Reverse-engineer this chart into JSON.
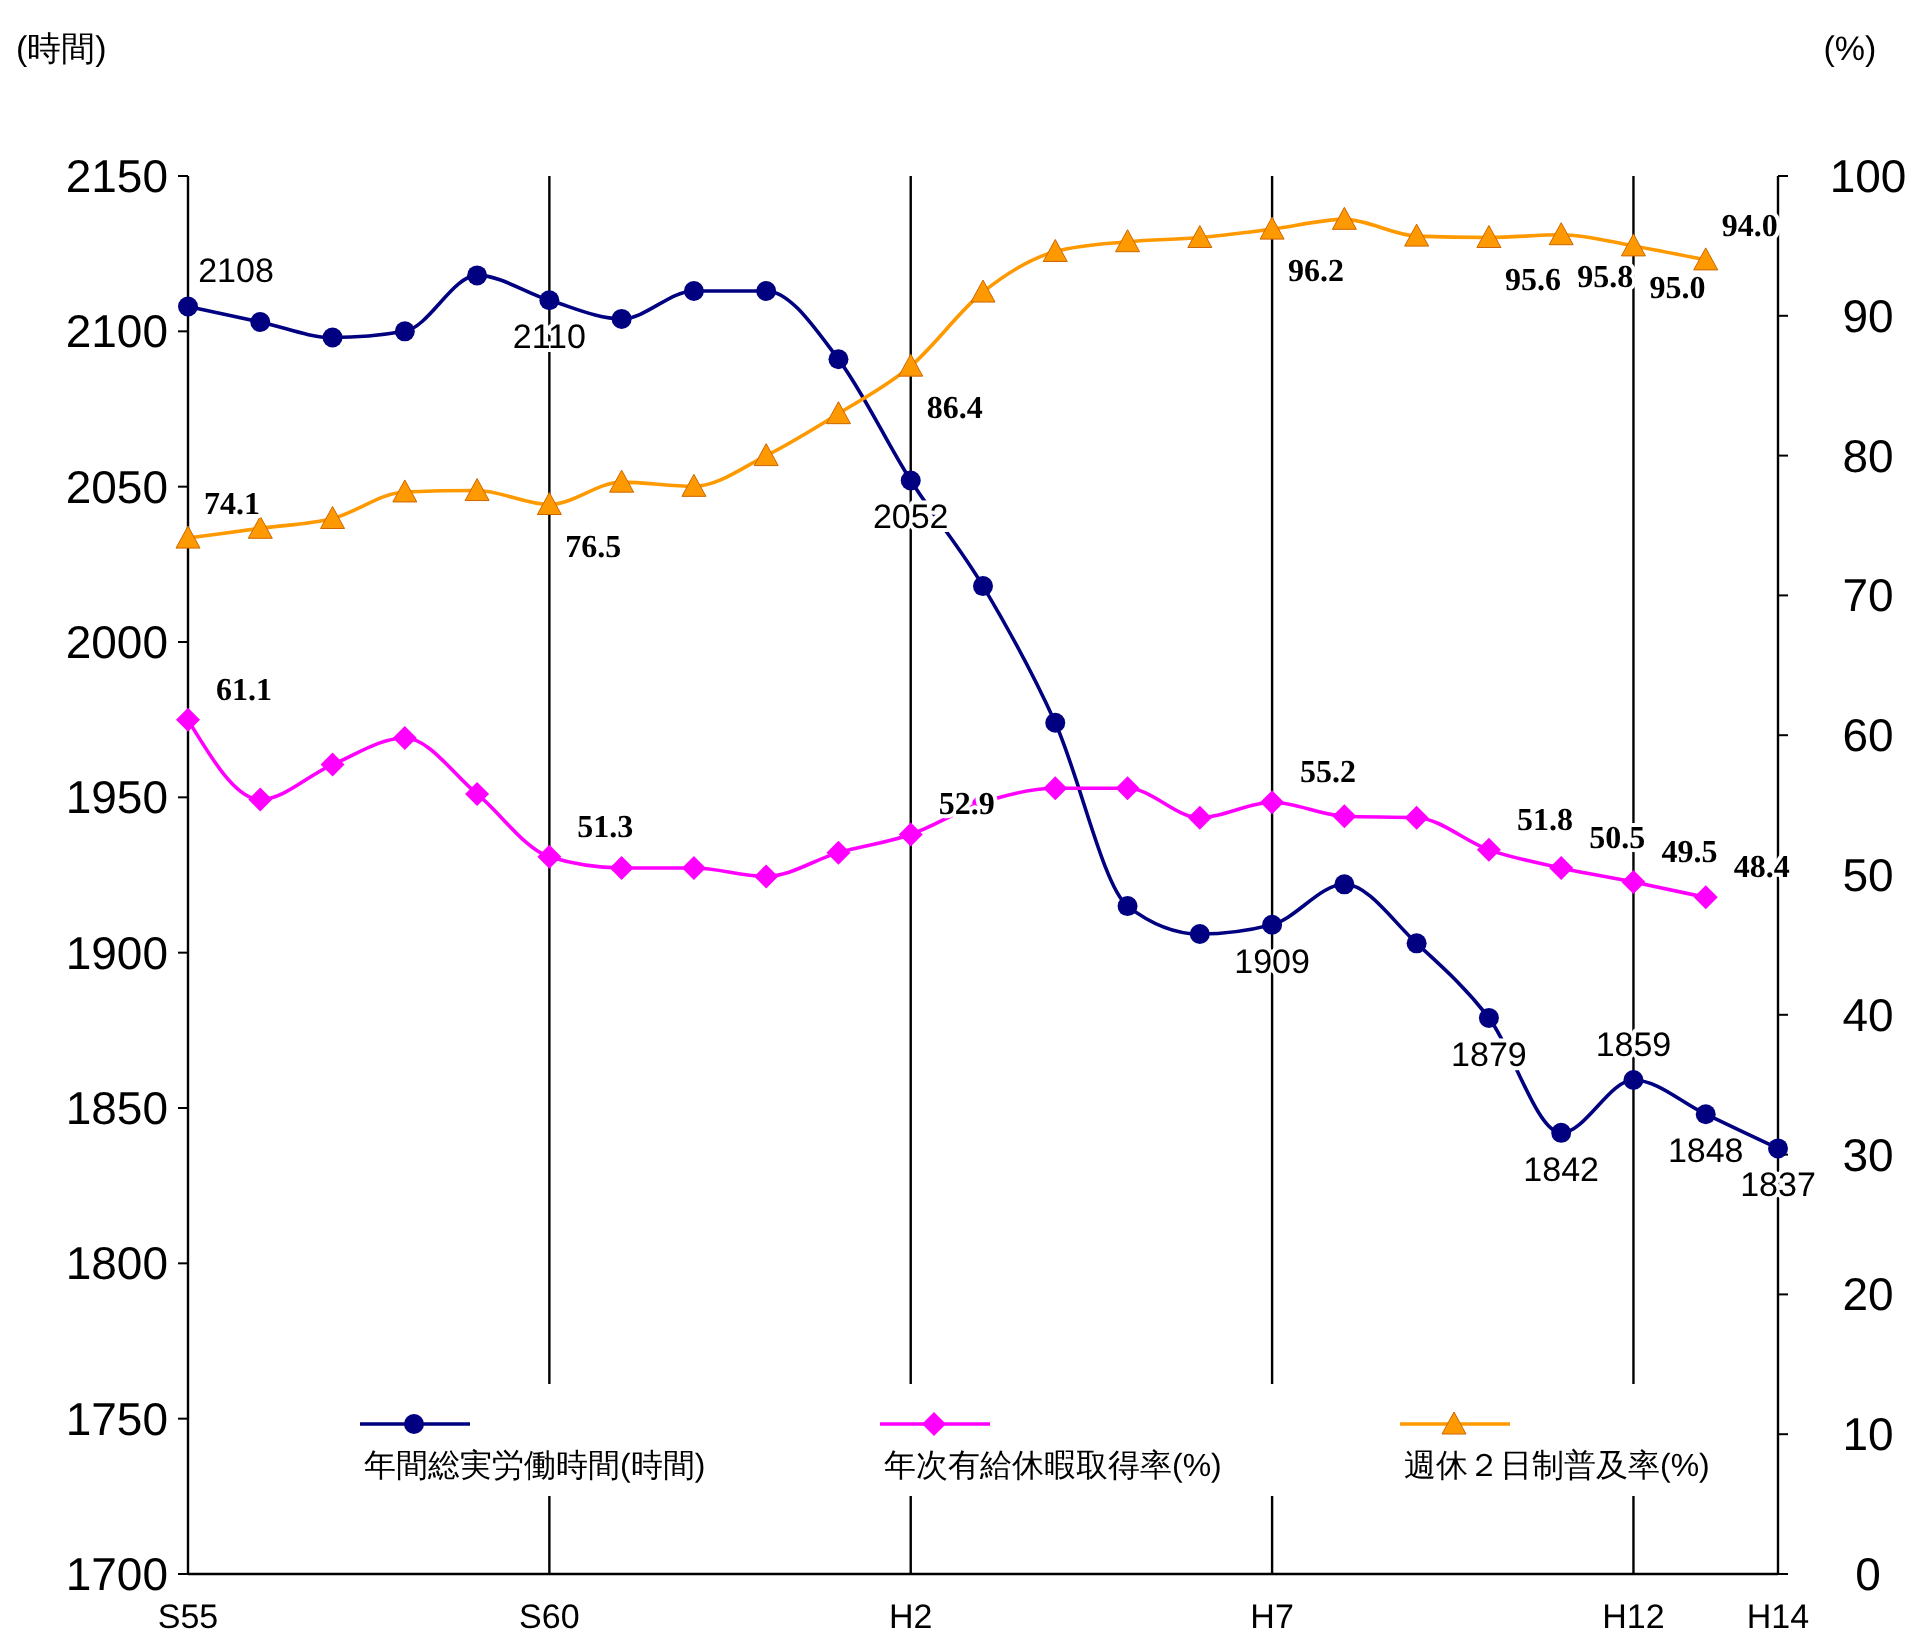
{
  "chart_data": {
    "type": "line",
    "ylabel": "(時間)",
    "y2label": "(%)",
    "categories": [
      "S55",
      null,
      null,
      null,
      null,
      "S60",
      null,
      null,
      null,
      null,
      "H2",
      null,
      null,
      null,
      null,
      "H7",
      null,
      null,
      null,
      null,
      "H12",
      null,
      "H14"
    ],
    "ylim": [
      1700,
      2150
    ],
    "yticks": [
      1700,
      1750,
      1800,
      1850,
      1900,
      1950,
      2000,
      2050,
      2100,
      2150
    ],
    "y2lim": [
      0,
      100
    ],
    "y2ticks": [
      0,
      10,
      20,
      30,
      40,
      50,
      60,
      70,
      80,
      90,
      100
    ],
    "grid": "x",
    "legend": "bottom",
    "series": [
      {
        "name": "年間総実労働時間(時間)",
        "color": "#000080",
        "marker": "circle",
        "values": [
          2108,
          2103,
          2098,
          2100,
          2118,
          2110,
          2104,
          2113,
          2113,
          2091,
          2052,
          2018,
          1974,
          1915,
          1906,
          1909,
          1922,
          1903,
          1879,
          1842,
          1859,
          1848,
          1837
        ],
        "value_labels": [
          "2108",
          null,
          null,
          null,
          null,
          "2110",
          null,
          null,
          null,
          null,
          "2052",
          null,
          null,
          null,
          null,
          "1909",
          null,
          null,
          "1879",
          "1842",
          "1859",
          "1848",
          "1837"
        ]
      },
      {
        "name": "年次有給休暇取得率(%)",
        "color": "#ff00ff",
        "marker": "diamond",
        "axis": "y2",
        "values": [
          61.1,
          55.4,
          57.9,
          59.8,
          55.8,
          51.3,
          50.5,
          50.5,
          49.9,
          51.6,
          52.9,
          55.2,
          56.2,
          56.2,
          54.1,
          55.2,
          54.2,
          54.1,
          51.8,
          50.5,
          49.5,
          48.4,
          null
        ],
        "value_labels": [
          "61.1",
          null,
          null,
          null,
          null,
          "51.3",
          null,
          null,
          null,
          null,
          "52.9",
          null,
          null,
          null,
          null,
          "55.2",
          null,
          null,
          "51.8",
          "50.5",
          "49.5",
          "48.4",
          null
        ]
      },
      {
        "name": "週休２日制普及率(%)",
        "color": "#ff9900",
        "marker": "triangle",
        "axis": "y2",
        "values": [
          74.1,
          74.8,
          75.5,
          77.4,
          77.5,
          76.5,
          78.1,
          77.8,
          80.0,
          83.0,
          86.4,
          91.7,
          94.6,
          95.3,
          95.6,
          96.2,
          96.9,
          95.7,
          95.6,
          95.8,
          95.0,
          94.0,
          null
        ],
        "value_labels": [
          "74.1",
          null,
          null,
          null,
          null,
          "76.5",
          null,
          null,
          null,
          null,
          "86.4",
          null,
          null,
          null,
          null,
          "96.2",
          null,
          null,
          "95.6",
          "95.8",
          "95.0",
          "94.0",
          null
        ]
      }
    ]
  }
}
